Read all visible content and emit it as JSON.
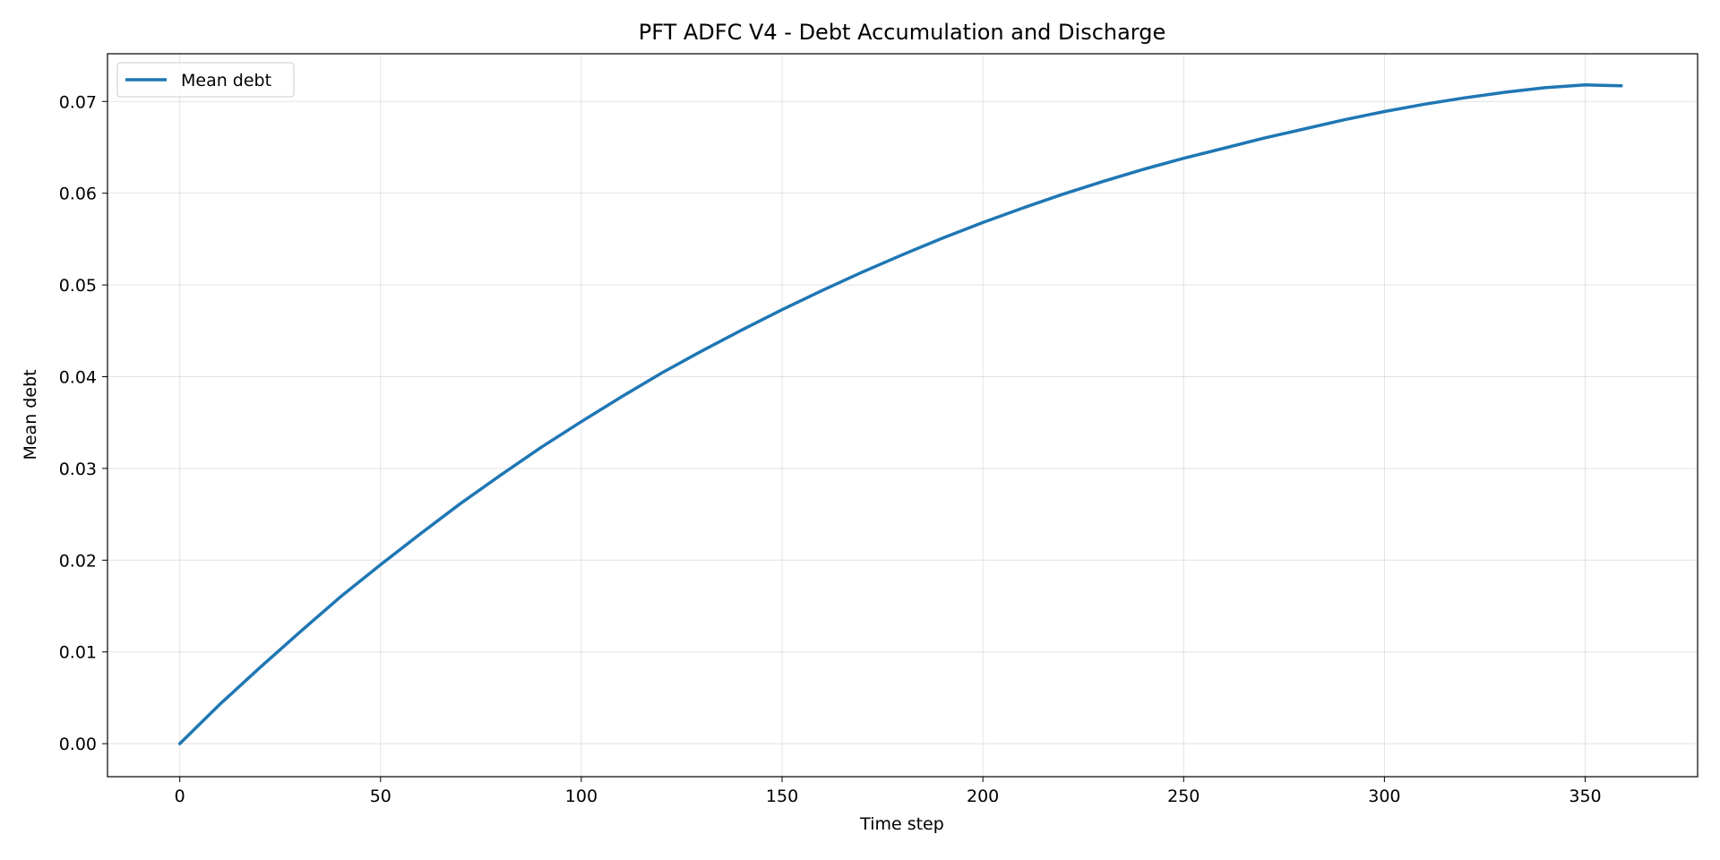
{
  "chart_data": {
    "type": "line",
    "title": "PFT ADFC V4 - Debt Accumulation and Discharge",
    "xlabel": "Time step",
    "ylabel": "Mean debt",
    "xlim": [
      -18,
      378
    ],
    "ylim": [
      -0.0036,
      0.0752
    ],
    "xticks": [
      0,
      50,
      100,
      150,
      200,
      250,
      300,
      350
    ],
    "xtick_labels": [
      "0",
      "50",
      "100",
      "150",
      "200",
      "250",
      "300",
      "350"
    ],
    "yticks": [
      0.0,
      0.01,
      0.02,
      0.03,
      0.04,
      0.05,
      0.06,
      0.07
    ],
    "ytick_labels": [
      "0.00",
      "0.01",
      "0.02",
      "0.03",
      "0.04",
      "0.05",
      "0.06",
      "0.07"
    ],
    "grid": true,
    "legend_position": "upper-left",
    "series": [
      {
        "name": "Mean debt",
        "color": "#1f77b4",
        "x": [
          0,
          10,
          20,
          30,
          40,
          50,
          60,
          70,
          80,
          90,
          100,
          110,
          120,
          130,
          140,
          150,
          160,
          170,
          180,
          190,
          200,
          210,
          220,
          230,
          240,
          250,
          260,
          270,
          280,
          290,
          300,
          310,
          320,
          330,
          340,
          350,
          359
        ],
        "y": [
          0.0,
          0.0043,
          0.0083,
          0.0122,
          0.016,
          0.0195,
          0.0229,
          0.0262,
          0.0293,
          0.0323,
          0.0351,
          0.0378,
          0.0404,
          0.0428,
          0.0451,
          0.0473,
          0.0494,
          0.0514,
          0.0533,
          0.0551,
          0.0568,
          0.0584,
          0.0599,
          0.0613,
          0.0626,
          0.0638,
          0.0649,
          0.066,
          0.067,
          0.068,
          0.0689,
          0.0697,
          0.0704,
          0.071,
          0.0715,
          0.0718,
          0.0717
        ]
      }
    ]
  }
}
